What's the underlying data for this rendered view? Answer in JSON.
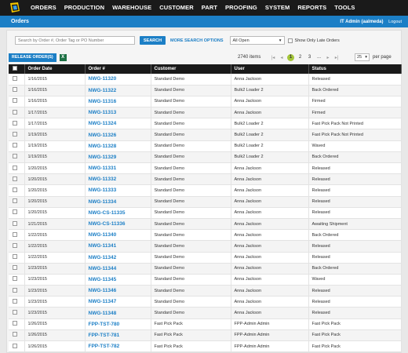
{
  "nav": {
    "items": [
      "ORDERS",
      "PRODUCTION",
      "WAREHOUSE",
      "CUSTOMER",
      "PART",
      "PROOFING",
      "SYSTEM",
      "REPORTS",
      "TOOLS"
    ]
  },
  "subbar": {
    "title": "Orders",
    "user": "IT Admin (aalmeda)",
    "logout": "Logout"
  },
  "search": {
    "placeholder": "Search by Order #, Order Tag or PO Number",
    "button": "SEARCH",
    "more_options": "MORE SEARCH OPTIONS",
    "filter_value": "All Open",
    "late_only_label": "Show Only Late Orders"
  },
  "toolbar": {
    "release_button": "RELEASE ORDER(S)",
    "items_count": "2740 items",
    "pages": [
      "1",
      "2",
      "3",
      "..."
    ],
    "page_size": "25",
    "per_page_label": "per page"
  },
  "table": {
    "columns": [
      "Order Date",
      "Order #",
      "Customer",
      "User",
      "Status"
    ],
    "rows": [
      [
        "1/16/2015",
        "NWG-11320",
        "Standard Demo",
        "Anna Jackson",
        "Released"
      ],
      [
        "1/16/2015",
        "NWG-11322",
        "Standard Demo",
        "Bulk2 Loader 2",
        "Back Ordered"
      ],
      [
        "1/16/2015",
        "NWG-11316",
        "Standard Demo",
        "Anna Jackson",
        "Firmed"
      ],
      [
        "1/17/2015",
        "NWG-11313",
        "Standard Demo",
        "Anna Jackson",
        "Firmed"
      ],
      [
        "1/17/2015",
        "NWG-11324",
        "Standard Demo",
        "Bulk2 Loader 2",
        "Fast Pick Pack Not Printed"
      ],
      [
        "1/19/2015",
        "NWG-11326",
        "Standard Demo",
        "Bulk2 Loader 2",
        "Fast Pick Pack Not Printed"
      ],
      [
        "1/19/2015",
        "NWG-11328",
        "Standard Demo",
        "Bulk2 Loader 2",
        "Waved"
      ],
      [
        "1/19/2015",
        "NWG-11329",
        "Standard Demo",
        "Bulk2 Loader 2",
        "Back Ordered"
      ],
      [
        "1/20/2015",
        "NWG-11331",
        "Standard Demo",
        "Anna Jackson",
        "Released"
      ],
      [
        "1/20/2015",
        "NWG-11332",
        "Standard Demo",
        "Anna Jackson",
        "Released"
      ],
      [
        "1/20/2015",
        "NWG-11333",
        "Standard Demo",
        "Anna Jackson",
        "Released"
      ],
      [
        "1/20/2015",
        "NWG-11334",
        "Standard Demo",
        "Anna Jackson",
        "Released"
      ],
      [
        "1/20/2015",
        "NWG-CS-11335",
        "Standard Demo",
        "Anna Jackson",
        "Released"
      ],
      [
        "1/21/2015",
        "NWG-CS-11336",
        "Standard Demo",
        "Anna Jackson",
        "Awaiting Shipment"
      ],
      [
        "1/22/2015",
        "NWG-11340",
        "Standard Demo",
        "Anna Jackson",
        "Back Ordered"
      ],
      [
        "1/22/2015",
        "NWG-11341",
        "Standard Demo",
        "Anna Jackson",
        "Released"
      ],
      [
        "1/22/2015",
        "NWG-11342",
        "Standard Demo",
        "Anna Jackson",
        "Released"
      ],
      [
        "1/23/2015",
        "NWG-11344",
        "Standard Demo",
        "Anna Jackson",
        "Back Ordered"
      ],
      [
        "1/23/2015",
        "NWG-11345",
        "Standard Demo",
        "Anna Jackson",
        "Waved"
      ],
      [
        "1/23/2015",
        "NWG-11346",
        "Standard Demo",
        "Anna Jackson",
        "Released"
      ],
      [
        "1/23/2015",
        "NWG-11347",
        "Standard Demo",
        "Anna Jackson",
        "Released"
      ],
      [
        "1/23/2015",
        "NWG-11348",
        "Standard Demo",
        "Anna Jackson",
        "Released"
      ],
      [
        "1/26/2015",
        "FPP-TST-780",
        "Fast Pick Pack",
        "FPP-Admin Admin",
        "Fast Pick Pack"
      ],
      [
        "1/26/2015",
        "FPP-TST-781",
        "Fast Pick Pack",
        "FPP-Admin Admin",
        "Fast Pick Pack"
      ],
      [
        "1/26/2015",
        "FPP-TST-782",
        "Fast Pick Pack",
        "FPP-Admin Admin",
        "Fast Pick Pack"
      ]
    ]
  }
}
